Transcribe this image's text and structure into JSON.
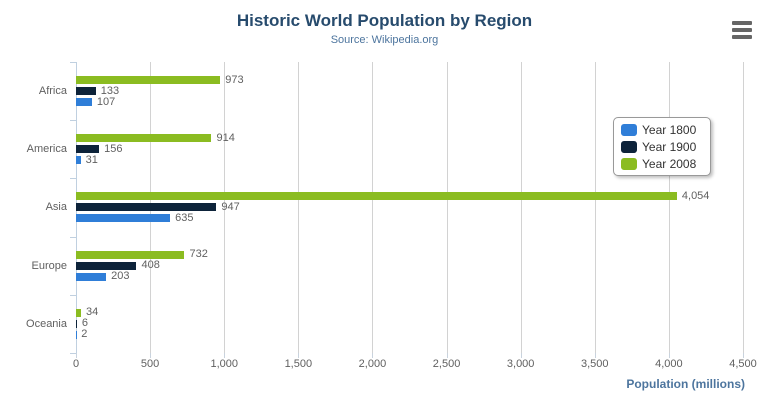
{
  "chart_data": {
    "type": "bar",
    "orientation": "horizontal",
    "title": "Historic World Population by Region",
    "subtitle": "Source: Wikipedia.org",
    "xlabel": "Population (millions)",
    "xlim": [
      0,
      4500
    ],
    "x_ticks": [
      0,
      500,
      1000,
      1500,
      2000,
      2500,
      3000,
      3500,
      4000,
      4500
    ],
    "x_tick_labels": [
      "0",
      "500",
      "1,000",
      "1,500",
      "2,000",
      "2,500",
      "3,000",
      "3,500",
      "4,000",
      "4,500"
    ],
    "grid": "vertical",
    "categories": [
      "Africa",
      "America",
      "Asia",
      "Europe",
      "Oceania"
    ],
    "series": [
      {
        "name": "Year 1800",
        "color": "#2f7ed8",
        "values": [
          107,
          31,
          635,
          203,
          2
        ]
      },
      {
        "name": "Year 1900",
        "color": "#0d233a",
        "values": [
          133,
          156,
          947,
          408,
          6
        ]
      },
      {
        "name": "Year 2008",
        "color": "#8bbc21",
        "values": [
          973,
          914,
          4054,
          732,
          34
        ]
      }
    ],
    "bar_order_top_to_bottom": [
      "Year 2008",
      "Year 1900",
      "Year 1800"
    ],
    "legend_position": "right-middle",
    "legend": [
      "Year 1800",
      "Year 1900",
      "Year 2008"
    ]
  },
  "styles": {
    "title_color": "#274b6d",
    "subtitle_color": "#4d759e",
    "axis_title_color": "#4d759e",
    "tick_label_color": "#606060",
    "data_label_color": "#606060",
    "grid_line_color": "#d2d2d2",
    "axis_line_color": "#c0d0e0"
  },
  "menu": {
    "icon": "hamburger-menu-icon"
  }
}
